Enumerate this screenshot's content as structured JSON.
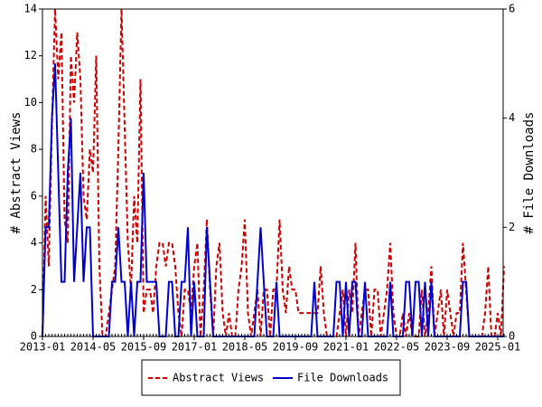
{
  "chart_data": {
    "type": "line",
    "y_label": "# Abstract Views",
    "y2_label": "# File Downloads",
    "x": [
      "2013-01",
      "2013-02",
      "2013-03",
      "2013-04",
      "2013-05",
      "2013-06",
      "2013-07",
      "2013-08",
      "2013-09",
      "2013-10",
      "2013-11",
      "2013-12",
      "2014-01",
      "2014-02",
      "2014-03",
      "2014-04",
      "2014-05",
      "2014-06",
      "2014-07",
      "2014-08",
      "2014-09",
      "2014-10",
      "2014-11",
      "2014-12",
      "2015-01",
      "2015-02",
      "2015-03",
      "2015-04",
      "2015-05",
      "2015-06",
      "2015-07",
      "2015-08",
      "2015-09",
      "2015-10",
      "2015-11",
      "2015-12",
      "2016-01",
      "2016-02",
      "2016-03",
      "2016-04",
      "2016-05",
      "2016-06",
      "2016-07",
      "2016-08",
      "2016-09",
      "2016-10",
      "2016-11",
      "2016-12",
      "2017-01",
      "2017-02",
      "2017-03",
      "2017-04",
      "2017-05",
      "2017-06",
      "2017-07",
      "2017-08",
      "2017-09",
      "2017-10",
      "2017-11",
      "2017-12",
      "2018-01",
      "2018-02",
      "2018-03",
      "2018-04",
      "2018-05",
      "2018-06",
      "2018-07",
      "2018-08",
      "2018-09",
      "2018-10",
      "2018-11",
      "2018-12",
      "2019-01",
      "2019-02",
      "2019-03",
      "2019-04",
      "2019-05",
      "2019-06",
      "2019-07",
      "2019-08",
      "2019-09",
      "2019-10",
      "2019-11",
      "2019-12",
      "2020-01",
      "2020-02",
      "2020-03",
      "2020-04",
      "2020-05",
      "2020-06",
      "2020-07",
      "2020-08",
      "2020-09",
      "2020-10",
      "2020-11",
      "2020-12",
      "2021-01",
      "2021-02",
      "2021-03",
      "2021-04",
      "2021-05",
      "2021-06",
      "2021-07",
      "2021-08",
      "2021-09",
      "2021-10",
      "2021-11",
      "2021-12",
      "2022-01",
      "2022-02",
      "2022-03",
      "2022-04",
      "2022-05",
      "2022-06",
      "2022-07",
      "2022-08",
      "2022-09",
      "2022-10",
      "2022-11",
      "2022-12",
      "2023-01",
      "2023-02",
      "2023-03",
      "2023-04",
      "2023-05",
      "2023-06",
      "2023-07",
      "2023-08",
      "2023-09",
      "2023-10",
      "2023-11",
      "2023-12",
      "2024-01",
      "2024-02",
      "2024-03",
      "2024-04",
      "2024-05",
      "2024-06",
      "2024-07",
      "2024-08",
      "2024-09",
      "2024-10",
      "2024-11",
      "2024-12",
      "2025-01",
      "2025-02",
      "2025-03"
    ],
    "ylim": [
      0,
      14
    ],
    "yticks": [
      0,
      2,
      4,
      6,
      8,
      10,
      12,
      14
    ],
    "y2lim": [
      0,
      6
    ],
    "y2ticks": [
      0,
      2,
      4,
      6
    ],
    "legend": "bottom",
    "series": [
      {
        "name": "Abstract Views",
        "color": "#cc0000",
        "dash": true,
        "values": [
          0,
          6,
          3,
          9,
          14,
          11,
          13,
          5,
          4,
          12,
          10,
          13,
          11,
          6,
          5,
          8,
          7,
          12,
          3,
          0,
          0,
          1,
          2,
          3,
          8,
          14,
          9,
          4,
          2,
          6,
          4,
          11,
          1,
          2,
          2,
          1,
          3,
          4,
          4,
          3,
          4,
          4,
          3,
          1,
          0,
          2,
          2,
          1,
          3,
          4,
          0,
          2,
          5,
          2,
          0,
          3,
          4,
          1,
          0,
          1,
          0,
          0,
          2,
          3,
          5,
          1,
          0,
          1,
          2,
          0,
          2,
          2,
          0,
          2,
          2,
          5,
          2,
          1,
          3,
          2,
          2,
          1,
          1,
          1,
          1,
          1,
          1,
          1,
          3,
          1,
          0,
          0,
          0,
          0,
          1,
          2,
          0,
          2,
          1,
          4,
          0,
          1,
          2,
          2,
          0,
          2,
          2,
          0,
          1,
          2,
          4,
          1,
          0,
          0,
          1,
          0,
          1,
          0,
          0,
          0,
          2,
          0,
          1,
          3,
          0,
          1,
          2,
          0,
          2,
          1,
          0,
          1,
          1,
          4,
          2,
          0,
          0,
          0,
          0,
          0,
          1,
          3,
          0,
          0,
          1,
          0,
          3
        ]
      },
      {
        "name": "File Downloads",
        "color": "#0000cc",
        "axis": "y2",
        "values": [
          0,
          2,
          2,
          4,
          5,
          3,
          1,
          1,
          3,
          4,
          1,
          2,
          3,
          1,
          2,
          2,
          0,
          0,
          0,
          0,
          0,
          0,
          1,
          1,
          2,
          1,
          1,
          0,
          1,
          0,
          1,
          1,
          3,
          1,
          1,
          1,
          1,
          0,
          0,
          0,
          1,
          1,
          0,
          0,
          1,
          1,
          2,
          0,
          1,
          0,
          0,
          0,
          2,
          1,
          0,
          0,
          0,
          0,
          0,
          0,
          0,
          0,
          0,
          0,
          0,
          0,
          0,
          0,
          1,
          2,
          1,
          0,
          0,
          0,
          1,
          0,
          0,
          0,
          0,
          0,
          0,
          0,
          0,
          0,
          0,
          0,
          1,
          0,
          0,
          0,
          0,
          0,
          0,
          1,
          1,
          0,
          1,
          0,
          1,
          1,
          0,
          0,
          1,
          0,
          0,
          0,
          0,
          0,
          0,
          0,
          1,
          0,
          0,
          0,
          0,
          1,
          1,
          0,
          1,
          1,
          0,
          1,
          0,
          1,
          0,
          0,
          0,
          0,
          0,
          0,
          0,
          0,
          0,
          1,
          1,
          0,
          0,
          0,
          0,
          0,
          0,
          0,
          0,
          0,
          0,
          0,
          0
        ]
      }
    ]
  }
}
